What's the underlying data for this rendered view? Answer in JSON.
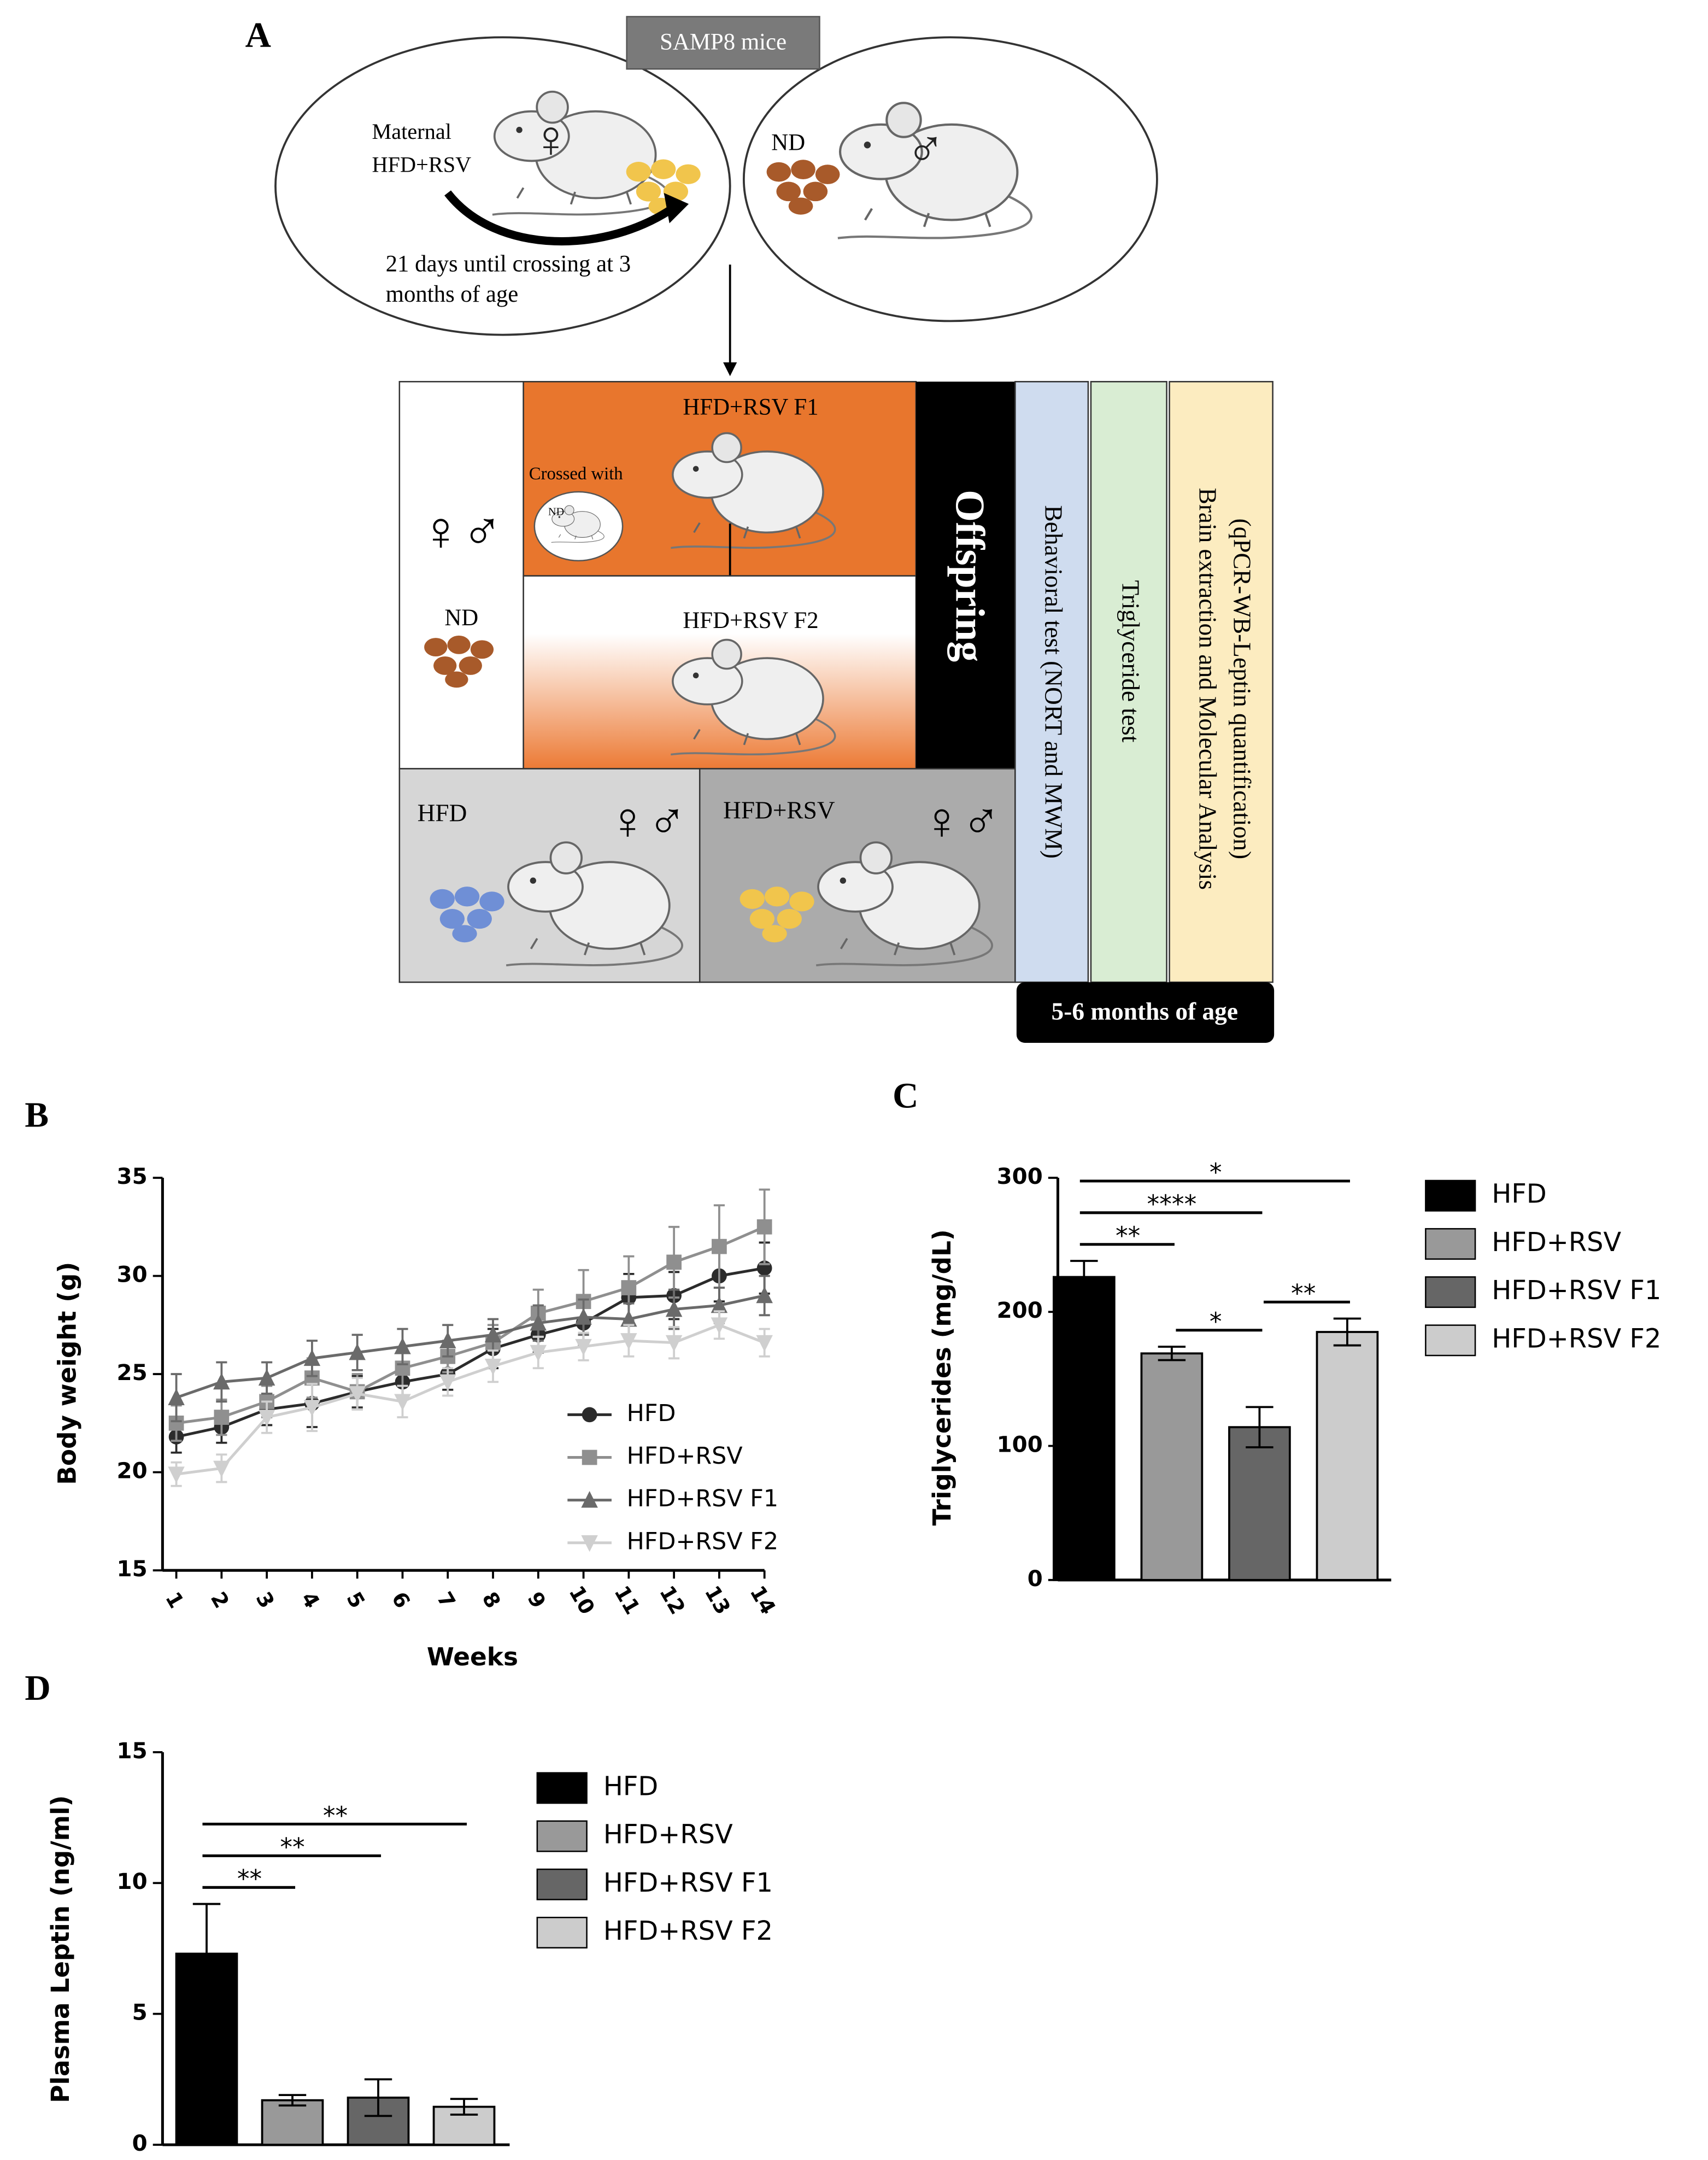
{
  "diagram": {
    "panel_label": "A",
    "source_label": "SAMP8 mice",
    "maternal_label": [
      "Maternal",
      "HFD+RSV"
    ],
    "crossing_note": [
      "21 days until crossing at 3",
      "months of age"
    ],
    "male_diet": "ND",
    "female_symbol": "♀",
    "male_symbol": "♂",
    "both_symbol": "♀♂",
    "groups": {
      "f1": "HFD+RSV F1",
      "crossed_with": "Crossed with",
      "crossed_diet": "ND",
      "f2": "HFD+RSV F2",
      "nd": "ND",
      "hfd": "HFD",
      "hfd_rsv": "HFD+RSV"
    },
    "offspring": "Offspring",
    "tests": [
      "Behavioral test (NORT and MWM)",
      "Triglyceride test"
    ],
    "molecular": [
      "Brain extraction and Molecular Analysis",
      "(qPCR-WB-Leptin quantification)"
    ],
    "age": "5-6 months of age"
  },
  "chart_data": [
    {
      "type": "line",
      "panel_label": "B",
      "x_label": "Weeks",
      "y_label": "Body weight (g)",
      "categories": [
        "1",
        "2",
        "3",
        "4",
        "5",
        "6",
        "7",
        "8",
        "9",
        "10",
        "11",
        "12",
        "13",
        "14"
      ],
      "ylim": [
        15,
        35
      ],
      "yticks": [
        15,
        20,
        25,
        30,
        35
      ],
      "series": [
        {
          "name": "HFD",
          "color": "#2b2b2b",
          "marker": "circle",
          "values": [
            21.8,
            22.3,
            23.2,
            23.5,
            24.1,
            24.6,
            25.0,
            26.3,
            27.0,
            27.6,
            28.9,
            29.0,
            30.0,
            30.4
          ],
          "errors": [
            0.8,
            0.8,
            0.8,
            1.2,
            0.8,
            0.9,
            0.8,
            1.0,
            0.9,
            1.1,
            1.2,
            1.2,
            1.3,
            1.3
          ]
        },
        {
          "name": "HFD+RSV",
          "color": "#8f8f8f",
          "marker": "square",
          "values": [
            22.5,
            22.8,
            23.6,
            24.8,
            24.1,
            25.3,
            25.9,
            26.6,
            28.1,
            28.7,
            29.4,
            30.7,
            31.5,
            32.5
          ],
          "errors": [
            0.9,
            0.9,
            0.8,
            1.0,
            0.9,
            0.9,
            0.8,
            0.9,
            1.2,
            1.6,
            1.6,
            1.8,
            2.1,
            1.9
          ]
        },
        {
          "name": "HFD+RSV F1",
          "color": "#6a6a6a",
          "marker": "triangle",
          "values": [
            23.8,
            24.6,
            24.8,
            25.8,
            26.1,
            26.4,
            26.7,
            27.0,
            27.6,
            27.9,
            27.8,
            28.3,
            28.5,
            29.0
          ],
          "errors": [
            1.2,
            1.0,
            0.8,
            0.9,
            0.9,
            0.9,
            0.8,
            0.8,
            0.9,
            0.9,
            0.8,
            1.0,
            0.9,
            1.0
          ]
        },
        {
          "name": "HFD+RSV F2",
          "color": "#cfcfcf",
          "marker": "triangle-down",
          "values": [
            19.9,
            20.2,
            22.8,
            23.3,
            24.0,
            23.6,
            24.6,
            25.4,
            26.1,
            26.4,
            26.7,
            26.6,
            27.5,
            26.6
          ],
          "errors": [
            0.6,
            0.7,
            0.8,
            1.2,
            0.8,
            0.8,
            0.7,
            0.8,
            0.8,
            0.7,
            0.8,
            0.8,
            0.7,
            0.7
          ]
        }
      ]
    },
    {
      "type": "bar",
      "panel_label": "C",
      "y_label": "Triglycerides (mg/dL)",
      "ylim": [
        0,
        300
      ],
      "yticks": [
        0,
        100,
        200,
        300
      ],
      "series": [
        {
          "name": "HFD",
          "color": "#000000",
          "values": [
            226
          ],
          "errors": [
            12
          ]
        },
        {
          "name": "HFD+RSV",
          "color": "#999999",
          "values": [
            169
          ],
          "errors": [
            5
          ]
        },
        {
          "name": "HFD+RSV F1",
          "color": "#666666",
          "values": [
            114
          ],
          "errors": [
            15
          ]
        },
        {
          "name": "HFD+RSV F2",
          "color": "#cccccc",
          "values": [
            185
          ],
          "errors": [
            10
          ]
        }
      ],
      "significance": [
        {
          "label": "*",
          "pair": [
            0,
            3
          ]
        },
        {
          "label": "****",
          "pair": [
            0,
            2
          ]
        },
        {
          "label": "**",
          "pair": [
            0,
            1
          ]
        },
        {
          "label": "*",
          "pair": [
            1,
            2
          ]
        },
        {
          "label": "**",
          "pair": [
            2,
            3
          ]
        }
      ]
    },
    {
      "type": "bar",
      "panel_label": "D",
      "y_label": "Plasma Leptin (ng/ml)",
      "ylim": [
        0,
        15
      ],
      "yticks": [
        0,
        5,
        10,
        15
      ],
      "series": [
        {
          "name": "HFD",
          "color": "#000000",
          "values": [
            7.3
          ],
          "errors": [
            1.9
          ]
        },
        {
          "name": "HFD+RSV",
          "color": "#999999",
          "values": [
            1.7
          ],
          "errors": [
            0.2
          ]
        },
        {
          "name": "HFD+RSV F1",
          "color": "#666666",
          "values": [
            1.8
          ],
          "errors": [
            0.7
          ]
        },
        {
          "name": "HFD+RSV F2",
          "color": "#cccccc",
          "values": [
            1.45
          ],
          "errors": [
            0.3
          ]
        }
      ],
      "significance": [
        {
          "label": "**",
          "pair": [
            0,
            3
          ]
        },
        {
          "label": "**",
          "pair": [
            0,
            2
          ]
        },
        {
          "label": "**",
          "pair": [
            0,
            1
          ]
        }
      ]
    }
  ]
}
